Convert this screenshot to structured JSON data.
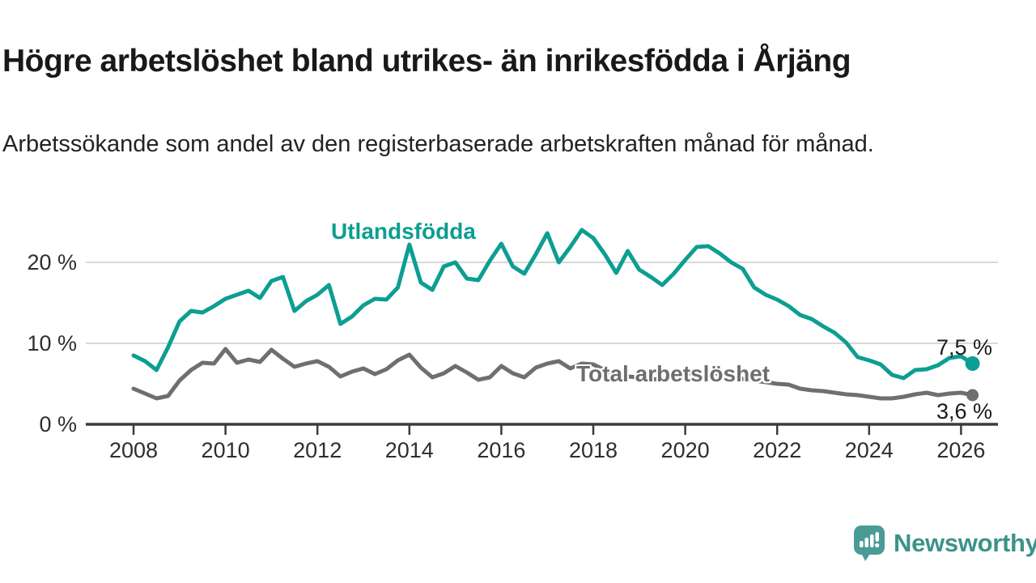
{
  "page": {
    "title": "Högre arbetslöshet bland utrikes- än inrikesfödda i Årjäng",
    "subtitle": "Arbetssökande som andel av den registerbaserade arbetskraften månad för månad."
  },
  "branding": {
    "logo_text": "Newsworthy",
    "logo_icon": "bar-chart-speech-bubble",
    "logo_color": "#3c928b",
    "logo_icon_color": "#4a9b95"
  },
  "chart_data": {
    "type": "line",
    "title": "Högre arbetslöshet bland utrikes- än inrikesfödda i Årjäng",
    "subtitle": "Arbetssökande som andel av den registerbaserade arbetskraften månad för månad.",
    "xlabel": "",
    "ylabel": "",
    "x_unit": "year (monthly data)",
    "x_start": 2008.0,
    "x_step": 0.25,
    "xlim": [
      2007.8,
      2026.6
    ],
    "ylim": [
      0,
      26
    ],
    "grid": "horizontal",
    "x_ticks": [
      2008,
      2010,
      2012,
      2014,
      2016,
      2018,
      2020,
      2022,
      2024,
      2026
    ],
    "y_ticks": [
      0,
      10,
      20
    ],
    "y_tick_suffix": " %",
    "colors": {
      "utlandsfodda": "#0d9e92",
      "total": "#6f6f6f",
      "gridline": "#d9d9d9",
      "axis": "#3c3c3c"
    },
    "series": [
      {
        "name": "Utlandsfödda",
        "color": "#0d9e92",
        "end_label": "7,5 %",
        "end_value": 7.5,
        "end_dot": true,
        "values": [
          8.5,
          7.8,
          6.7,
          9.5,
          12.7,
          14.0,
          13.8,
          14.6,
          15.5,
          16.0,
          16.5,
          15.6,
          17.7,
          18.2,
          14.0,
          15.2,
          16.0,
          17.2,
          12.4,
          13.3,
          14.7,
          15.5,
          15.4,
          16.9,
          22.2,
          17.5,
          16.6,
          19.5,
          20.0,
          18.0,
          17.8,
          20.2,
          22.3,
          19.5,
          18.6,
          21.0,
          23.6,
          20.0,
          21.9,
          24.0,
          23.0,
          21.0,
          18.7,
          21.4,
          19.1,
          18.2,
          17.2,
          18.6,
          20.3,
          21.9,
          22.0,
          21.1,
          20.0,
          19.2,
          16.9,
          16.0,
          15.4,
          14.6,
          13.5,
          13.0,
          12.1,
          11.3,
          10.1,
          8.3,
          7.9,
          7.4,
          6.1,
          5.7,
          6.7,
          6.8,
          7.3,
          8.2,
          8.4,
          7.5
        ]
      },
      {
        "name": "Total arbetslöshet",
        "color": "#6f6f6f",
        "end_label": "3,6 %",
        "end_value": 3.6,
        "end_dot": true,
        "values": [
          4.4,
          3.8,
          3.2,
          3.5,
          5.4,
          6.7,
          7.6,
          7.5,
          9.3,
          7.6,
          8.0,
          7.7,
          9.2,
          8.1,
          7.1,
          7.5,
          7.8,
          7.1,
          5.9,
          6.5,
          6.9,
          6.2,
          6.8,
          7.9,
          8.6,
          7.0,
          5.8,
          6.3,
          7.2,
          6.4,
          5.5,
          5.8,
          7.2,
          6.3,
          5.8,
          7.0,
          7.5,
          7.8,
          6.9,
          7.5,
          7.4,
          6.7,
          5.7,
          5.9,
          5.8,
          5.6,
          5.5,
          5.8,
          6.0,
          6.6,
          6.5,
          6.2,
          6.0,
          5.6,
          5.4,
          5.2,
          5.0,
          4.9,
          4.4,
          4.2,
          4.1,
          3.9,
          3.7,
          3.6,
          3.4,
          3.2,
          3.2,
          3.4,
          3.7,
          3.9,
          3.6,
          3.8,
          3.9,
          3.6
        ]
      }
    ]
  }
}
